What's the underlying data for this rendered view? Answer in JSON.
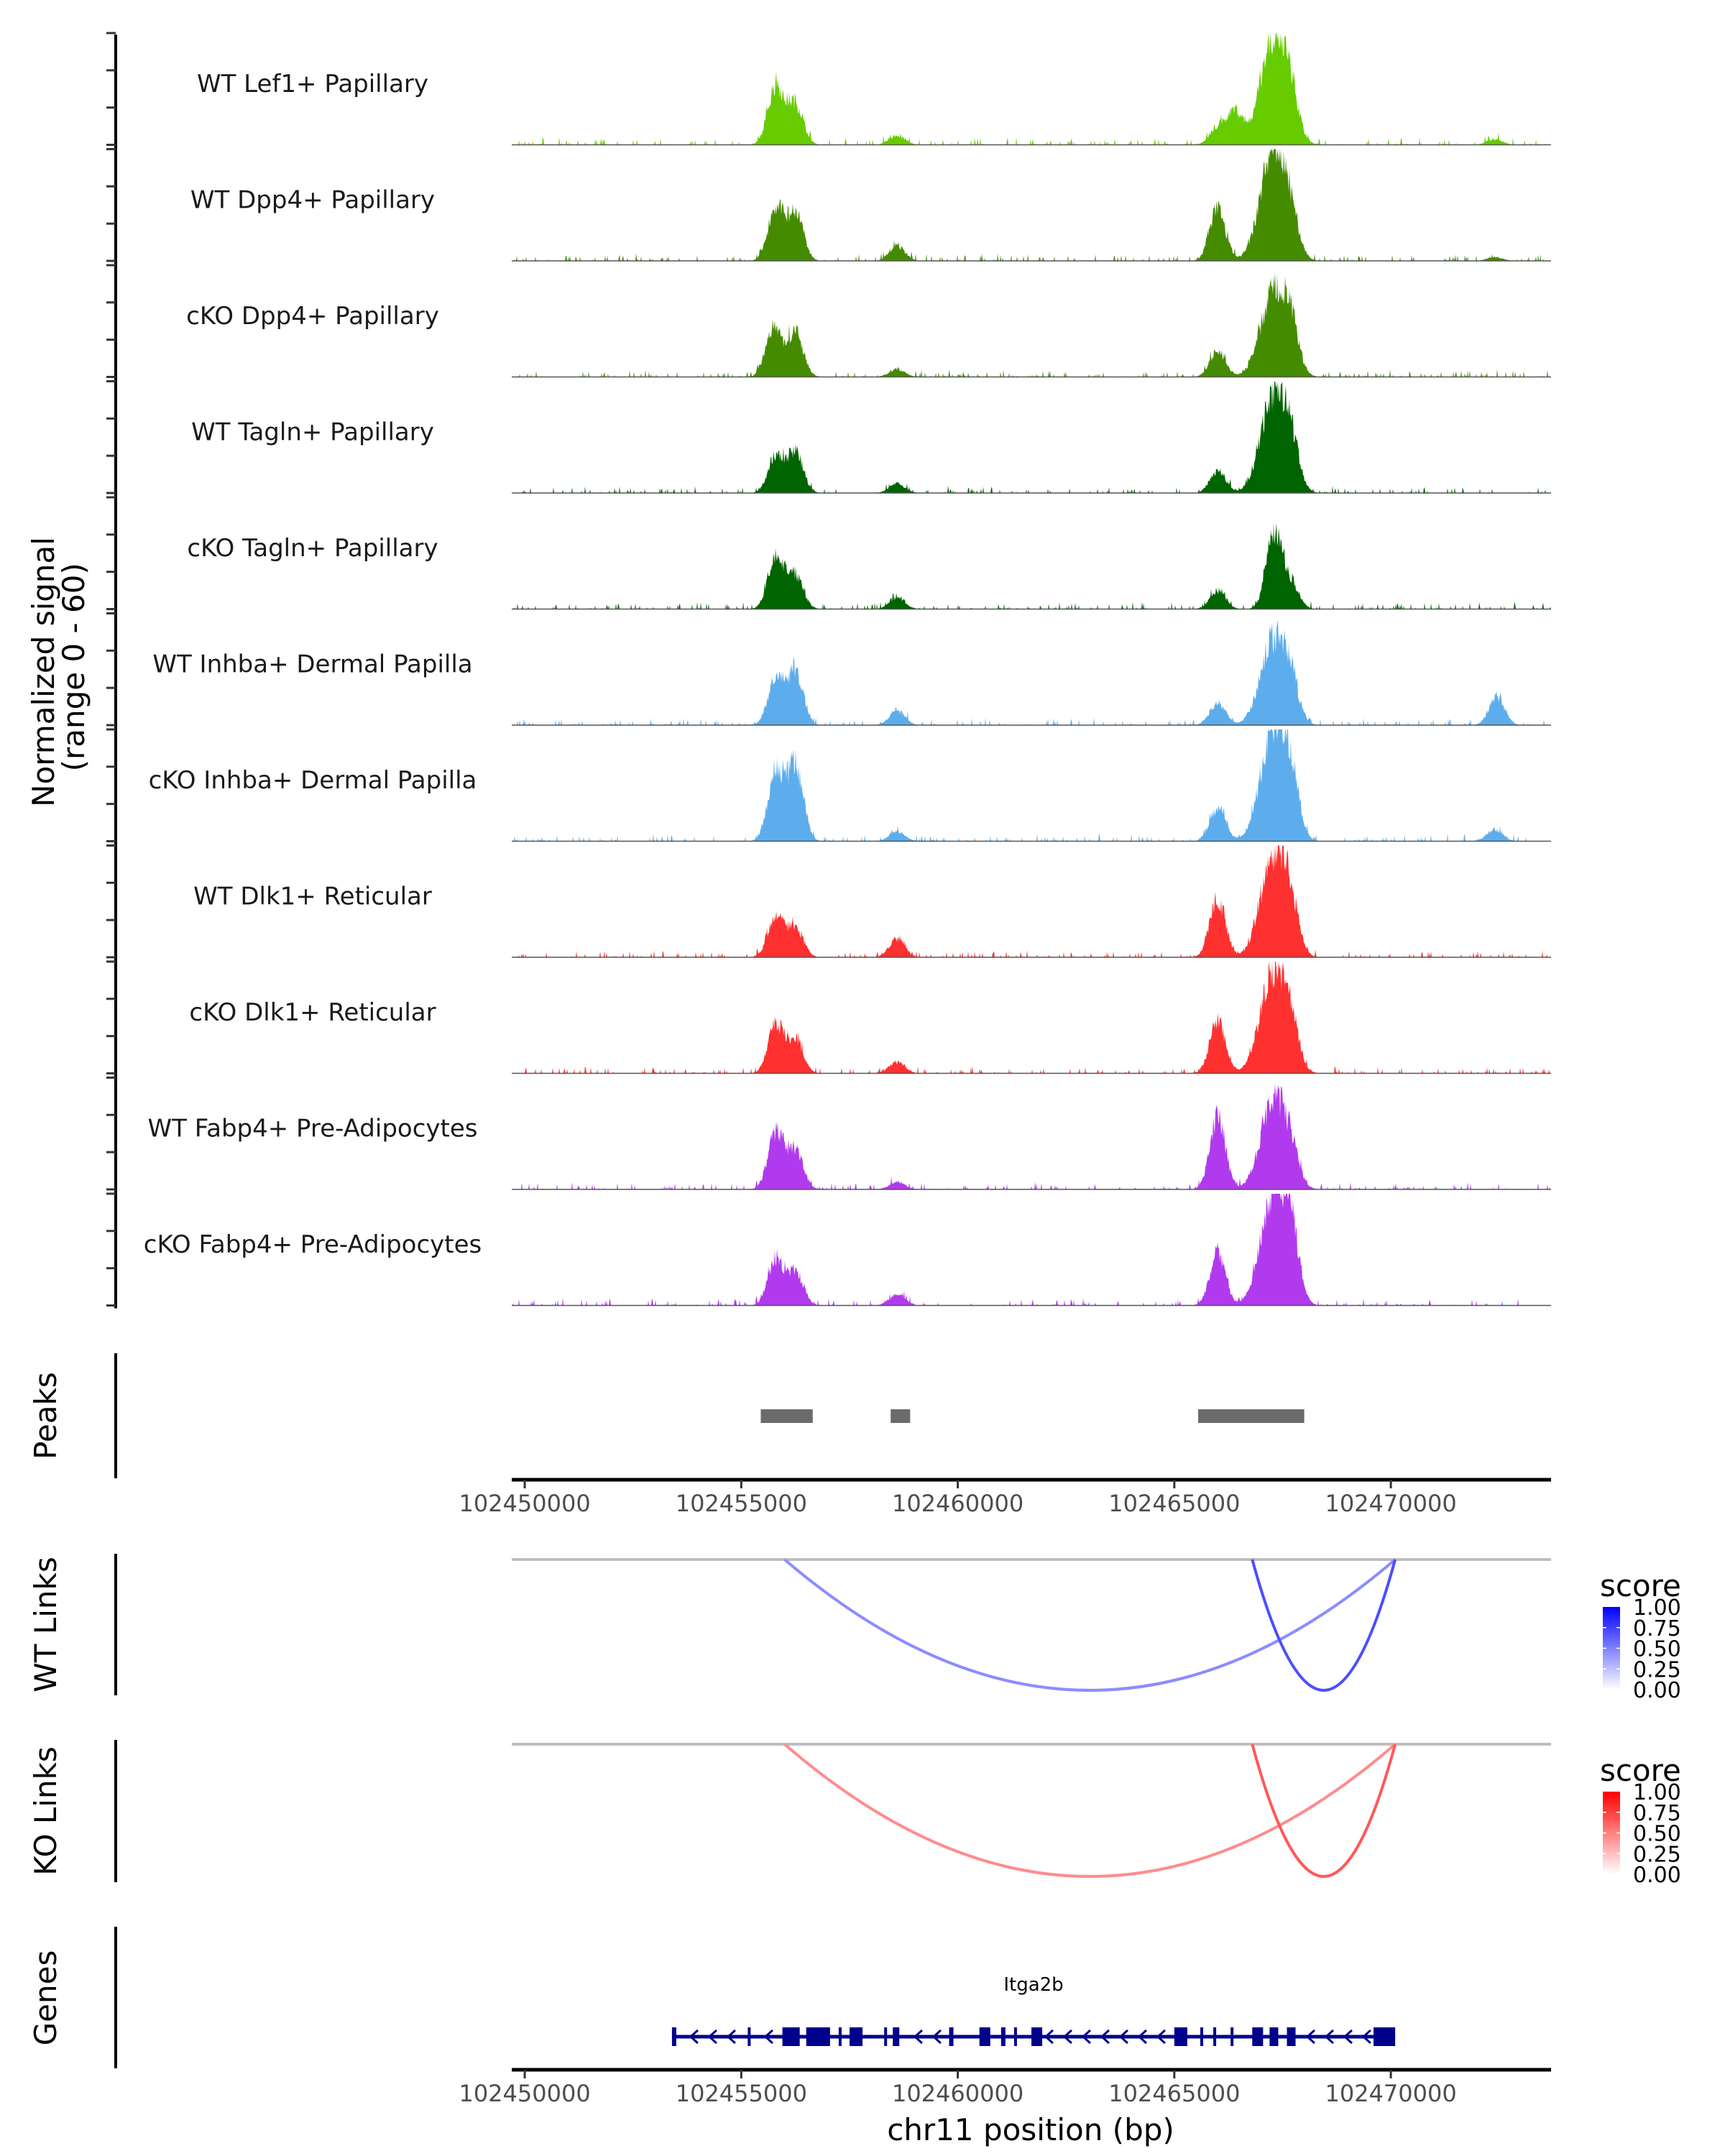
{
  "chart_data": {
    "type": "area",
    "title": "",
    "region": {
      "chrom": "chr11",
      "start": 102449700,
      "end": 102473700
    },
    "coverage": {
      "ylabel": "Normalized signal\n(range 0 - 60)",
      "ylabel_lines": [
        "Normalized signal",
        "(range 0 - 60)"
      ],
      "ylim": [
        0,
        60
      ],
      "y_ticks": [
        0,
        20,
        40,
        60
      ],
      "tracks": [
        {
          "name": "WT Lef1+ Papillary",
          "color": "#66CC00",
          "peaks": [
            [
              102455800,
              32
            ],
            [
              102456250,
              22
            ],
            [
              102458600,
              5
            ],
            [
              102466000,
              9
            ],
            [
              102466400,
              18
            ],
            [
              102467300,
              60
            ],
            [
              102467700,
              14
            ],
            [
              102472400,
              3
            ]
          ]
        },
        {
          "name": "WT Dpp4+ Papillary",
          "color": "#458B00",
          "peaks": [
            [
              102455800,
              29
            ],
            [
              102456250,
              25
            ],
            [
              102458600,
              8
            ],
            [
              102466000,
              28
            ],
            [
              102467300,
              60
            ],
            [
              102467700,
              12
            ],
            [
              102472400,
              2
            ]
          ]
        },
        {
          "name": "cKO Dpp4+ Papillary",
          "color": "#458B00",
          "peaks": [
            [
              102455750,
              27
            ],
            [
              102456250,
              24
            ],
            [
              102458600,
              4
            ],
            [
              102466000,
              14
            ],
            [
              102467300,
              46
            ],
            [
              102467700,
              18
            ]
          ]
        },
        {
          "name": "WT Tagln+ Papillary",
          "color": "#006400",
          "peaks": [
            [
              102455800,
              20
            ],
            [
              102456250,
              22
            ],
            [
              102458600,
              5
            ],
            [
              102466000,
              12
            ],
            [
              102467300,
              52
            ],
            [
              102467700,
              18
            ]
          ]
        },
        {
          "name": "cKO Tagln+ Papillary",
          "color": "#006400",
          "peaks": [
            [
              102455800,
              28
            ],
            [
              102456250,
              18
            ],
            [
              102458600,
              6
            ],
            [
              102466000,
              10
            ],
            [
              102467300,
              40
            ],
            [
              102467700,
              14
            ]
          ]
        },
        {
          "name": "WT Inhba+ Dermal Papilla",
          "color": "#5DADEC",
          "peaks": [
            [
              102455800,
              25
            ],
            [
              102456250,
              28
            ],
            [
              102458600,
              8
            ],
            [
              102466000,
              12
            ],
            [
              102467300,
              46
            ],
            [
              102467700,
              15
            ],
            [
              102472450,
              15
            ]
          ]
        },
        {
          "name": "cKO Inhba+ Dermal Papilla",
          "color": "#5DADEC",
          "peaks": [
            [
              102455800,
              38
            ],
            [
              102456250,
              40
            ],
            [
              102458600,
              5
            ],
            [
              102466000,
              18
            ],
            [
              102467300,
              60
            ],
            [
              102467700,
              24
            ],
            [
              102472400,
              6
            ]
          ]
        },
        {
          "name": "WT Dlk1+ Reticular",
          "color": "#FF3030",
          "peaks": [
            [
              102455800,
              22
            ],
            [
              102456250,
              16
            ],
            [
              102458600,
              10
            ],
            [
              102466000,
              32
            ],
            [
              102467300,
              55
            ],
            [
              102467700,
              18
            ]
          ]
        },
        {
          "name": "cKO Dlk1+ Reticular",
          "color": "#FF3030",
          "peaks": [
            [
              102455800,
              26
            ],
            [
              102456250,
              18
            ],
            [
              102458600,
              6
            ],
            [
              102466000,
              28
            ],
            [
              102467300,
              55
            ],
            [
              102467700,
              16
            ]
          ]
        },
        {
          "name": "WT Fabp4+ Pre-Adipocytes",
          "color": "#B23AEE",
          "peaks": [
            [
              102455800,
              31
            ],
            [
              102456250,
              20
            ],
            [
              102458600,
              4
            ],
            [
              102466000,
              38
            ],
            [
              102467300,
              48
            ],
            [
              102467700,
              12
            ]
          ]
        },
        {
          "name": "cKO Fabp4+ Pre-Adipocytes",
          "color": "#B23AEE",
          "peaks": [
            [
              102455800,
              25
            ],
            [
              102456250,
              18
            ],
            [
              102458600,
              6
            ],
            [
              102466000,
              28
            ],
            [
              102467300,
              60
            ],
            [
              102467700,
              30
            ]
          ]
        }
      ]
    },
    "peaks_track": {
      "label": "Peaks",
      "color": "#6B6B6B",
      "intervals": [
        [
          102455450,
          102456650
        ],
        [
          102458450,
          102458900
        ],
        [
          102465550,
          102468000
        ]
      ]
    },
    "x_axis": {
      "ticks": [
        102450000,
        102455000,
        102460000,
        102465000,
        102470000
      ],
      "tick_labels": [
        "102450000",
        "102455000",
        "102460000",
        "102465000",
        "102470000"
      ],
      "xlabel": "chr11 position (bp)"
    },
    "links": [
      {
        "label": "WT Links",
        "palette": [
          "#FFFFFF",
          "#0000FF"
        ],
        "legend_title": "score",
        "legend_ticks": [
          "1.00",
          "0.75",
          "0.50",
          "0.25",
          "0.00"
        ],
        "arcs": [
          {
            "start": 102456000,
            "end": 102470100,
            "score": 0.45
          },
          {
            "start": 102466800,
            "end": 102470100,
            "score": 0.7
          }
        ]
      },
      {
        "label": "KO Links",
        "palette": [
          "#FFFFFF",
          "#FF0000"
        ],
        "legend_title": "score",
        "legend_ticks": [
          "1.00",
          "0.75",
          "0.50",
          "0.25",
          "0.00"
        ],
        "arcs": [
          {
            "start": 102456000,
            "end": 102470100,
            "score": 0.45
          },
          {
            "start": 102466800,
            "end": 102470100,
            "score": 0.65
          }
        ]
      }
    ],
    "genes": {
      "label": "Genes",
      "color": "#00008B",
      "items": [
        {
          "name": "Itga2b",
          "start": 102453400,
          "end": 102470100,
          "strand": "-",
          "exons": [
            [
              102453400,
              102453500
            ],
            [
              102455150,
              102455200
            ],
            [
              102455950,
              102456350
            ],
            [
              102456500,
              102457050
            ],
            [
              102457250,
              102457300
            ],
            [
              102457500,
              102457800
            ],
            [
              102458300,
              102458350
            ],
            [
              102458500,
              102458650
            ],
            [
              102459800,
              102459900
            ],
            [
              102460500,
              102460750
            ],
            [
              102461000,
              102461100
            ],
            [
              102461300,
              102461350
            ],
            [
              102461700,
              102461950
            ],
            [
              102465000,
              102465300
            ],
            [
              102465600,
              102465650
            ],
            [
              102465900,
              102465950
            ],
            [
              102466300,
              102466350
            ],
            [
              102466800,
              102467050
            ],
            [
              102467200,
              102467400
            ],
            [
              102467600,
              102467800
            ],
            [
              102469600,
              102470100
            ]
          ]
        }
      ]
    }
  }
}
